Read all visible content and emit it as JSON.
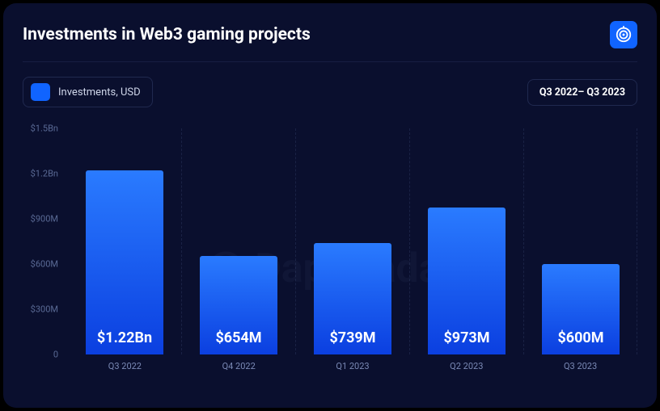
{
  "title": "Investments in Web3 gaming projects",
  "brand": {
    "name": "DappRadar",
    "logo_bg": "#1064ff"
  },
  "legend": {
    "label": "Investments, USD",
    "swatch_color": "#1064ff"
  },
  "range_badge": "Q3 2022– Q3 2023",
  "chart": {
    "type": "bar",
    "y": {
      "min": 0,
      "max": 1500,
      "ticks": [
        {
          "v": 0,
          "label": "0"
        },
        {
          "v": 300,
          "label": "$300M"
        },
        {
          "v": 600,
          "label": "$600M"
        },
        {
          "v": 900,
          "label": "$900M"
        },
        {
          "v": 1200,
          "label": "$1.2Bn"
        },
        {
          "v": 1500,
          "label": "$1.5Bn"
        }
      ]
    },
    "bars": [
      {
        "category": "Q3 2022",
        "value": 1220,
        "label": "$1.22Bn"
      },
      {
        "category": "Q4 2022",
        "value": 654,
        "label": "$654M"
      },
      {
        "category": "Q1 2023",
        "value": 739,
        "label": "$739M"
      },
      {
        "category": "Q2 2023",
        "value": 973,
        "label": "$973M"
      },
      {
        "category": "Q3 2023",
        "value": 600,
        "label": "$600M"
      }
    ],
    "bar_gradient_top": "#2a7bff",
    "bar_gradient_bottom": "#0b3fe0",
    "background": "#0a0f2e",
    "grid_color": "rgba(100,120,180,0.18)",
    "axis_text_color": "#5a6a95"
  },
  "watermark": "DappRadar"
}
